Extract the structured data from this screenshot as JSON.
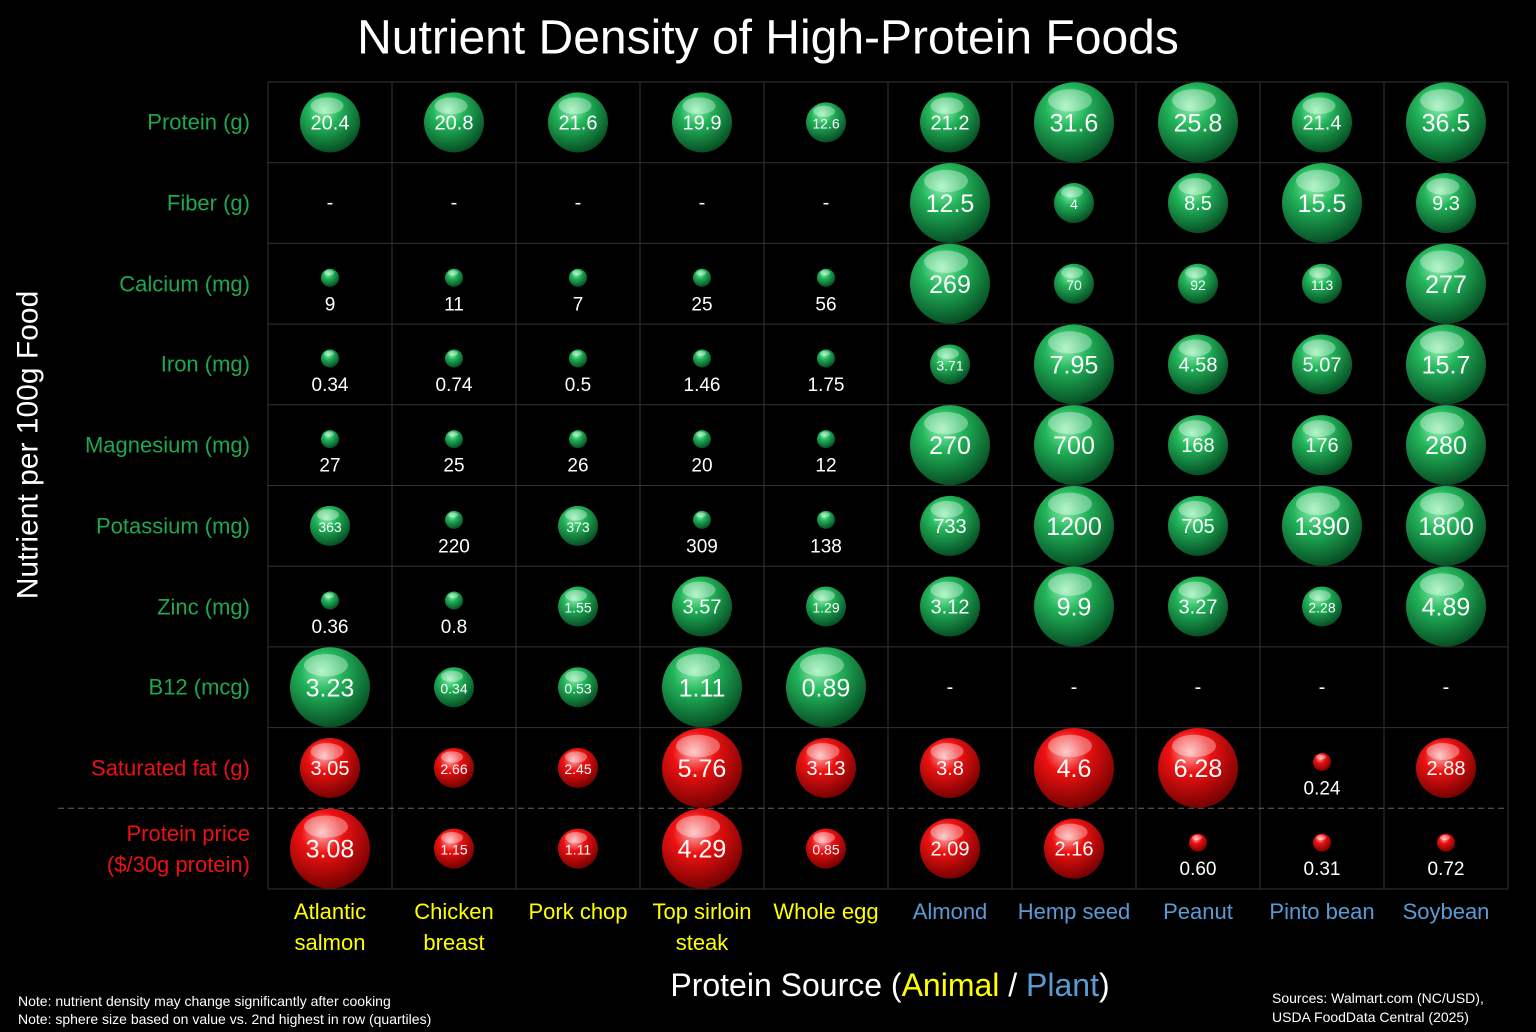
{
  "chart_data": {
    "type": "bubble_grid",
    "title": "Nutrient Density of High-Protein Foods",
    "ylabel": "Nutrient per 100g Food",
    "xlabel": {
      "prefix": "Protein Source (",
      "separator": " / ",
      "suffix": ")"
    },
    "groups": [
      {
        "name": "Animal",
        "color": "#ffff00"
      },
      {
        "name": "Plant",
        "color": "#5b9bd5"
      }
    ],
    "categories": [
      "Atlantic salmon",
      "Chicken breast",
      "Pork chop",
      "Top sirloin steak",
      "Whole egg",
      "Almond",
      "Hemp seed",
      "Peanut",
      "Pinto bean",
      "Soybean"
    ],
    "category_groups": [
      0,
      0,
      0,
      0,
      0,
      1,
      1,
      1,
      1,
      1
    ],
    "missing_label": "-",
    "series": [
      {
        "name": "Protein (g)",
        "color": "#1fa84f",
        "values": [
          20.4,
          20.8,
          21.6,
          19.9,
          12.6,
          21.2,
          31.6,
          25.8,
          21.4,
          36.5
        ]
      },
      {
        "name": "Fiber (g)",
        "color": "#1fa84f",
        "values": [
          null,
          null,
          null,
          null,
          null,
          12.5,
          4,
          8.5,
          15.5,
          9.3
        ]
      },
      {
        "name": "Calcium (mg)",
        "color": "#1fa84f",
        "values": [
          9,
          11,
          7,
          25,
          56,
          269,
          70,
          92,
          113,
          277
        ]
      },
      {
        "name": "Iron (mg)",
        "color": "#1fa84f",
        "values": [
          0.34,
          0.74,
          0.5,
          1.46,
          1.75,
          3.71,
          7.95,
          4.58,
          5.07,
          15.7
        ]
      },
      {
        "name": "Magnesium (mg)",
        "color": "#1fa84f",
        "values": [
          27,
          25,
          26,
          20,
          12,
          270,
          700,
          168,
          176,
          280
        ]
      },
      {
        "name": "Potassium (mg)",
        "color": "#1fa84f",
        "values": [
          363,
          220,
          373,
          309,
          138,
          733,
          1200,
          705,
          1390,
          1800
        ]
      },
      {
        "name": "Zinc (mg)",
        "color": "#1fa84f",
        "values": [
          0.36,
          0.8,
          1.55,
          3.57,
          1.29,
          3.12,
          9.9,
          3.27,
          2.28,
          4.89
        ]
      },
      {
        "name": "B12 (mcg)",
        "color": "#1fa84f",
        "values": [
          3.23,
          0.34,
          0.53,
          1.11,
          0.89,
          null,
          null,
          null,
          null,
          null
        ]
      },
      {
        "name": "Saturated fat (g)",
        "color": "#ee1111",
        "values": [
          3.05,
          2.66,
          2.45,
          5.76,
          3.13,
          3.8,
          4.6,
          6.28,
          0.24,
          2.88
        ]
      },
      {
        "name": "Protein price\n($/30g protein)",
        "color": "#ee1111",
        "values": [
          3.08,
          1.15,
          1.11,
          4.29,
          0.85,
          2.09,
          2.16,
          0.6,
          0.31,
          0.72
        ],
        "value_labels": [
          "3.08",
          "1.15",
          "1.11",
          "4.29",
          "0.85",
          "2.09",
          "2.16",
          "0.60",
          "0.31",
          "0.72"
        ]
      }
    ],
    "notes": [
      "Note: nutrient density may change significantly after cooking",
      "Note: sphere size based on value vs. 2nd highest in row (quartiles)"
    ],
    "sources": [
      "Sources: Walmart.com (NC/USD),",
      "USDA FoodData Central (2025)"
    ]
  }
}
